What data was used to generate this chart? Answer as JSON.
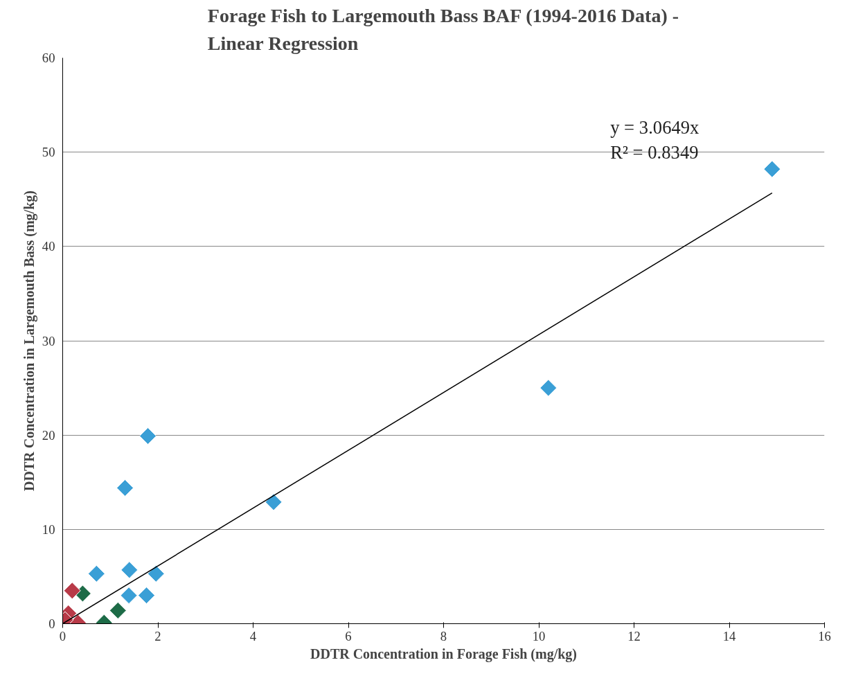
{
  "chart_data": {
    "type": "scatter",
    "title": "Forage Fish to Largemouth Bass BAF (1994-2016 Data) -\nLinear Regression",
    "xlabel": "DDTR Concentration in Forage Fish (mg/kg)",
    "ylabel": "DDTR Concentration in Largemouth Bass (mg/kg)",
    "xlim": [
      0,
      16
    ],
    "ylim": [
      0,
      60
    ],
    "xticks": [
      0,
      2,
      4,
      6,
      8,
      10,
      12,
      14,
      16
    ],
    "yticks": [
      0,
      10,
      20,
      30,
      40,
      50,
      60
    ],
    "grid": "y",
    "marker": "diamond",
    "annotations": [
      "y = 3.0649x",
      "R² = 0.8349"
    ],
    "series": [
      {
        "color": "#3a9fd6",
        "x": [
          0.71,
          1.4,
          1.96,
          1.39,
          1.76,
          1.31,
          1.79,
          4.43,
          10.2,
          14.9
        ],
        "values": [
          5.3,
          5.7,
          5.3,
          3.0,
          3.0,
          14.4,
          19.9,
          12.9,
          25.0,
          48.2
        ]
      },
      {
        "color": "#1d6b47",
        "x": [
          0.42,
          0.87,
          1.16
        ],
        "values": [
          3.2,
          0.1,
          1.4
        ]
      },
      {
        "color": "#b83a48",
        "x": [
          0.2,
          0.12,
          0.32,
          0.05
        ],
        "values": [
          3.5,
          1.1,
          0.1,
          0.4
        ]
      },
      {
        "type": "line",
        "color": "#000000",
        "marker": "none",
        "x": [
          0,
          14.9
        ],
        "values": [
          0,
          45.67
        ]
      }
    ]
  }
}
